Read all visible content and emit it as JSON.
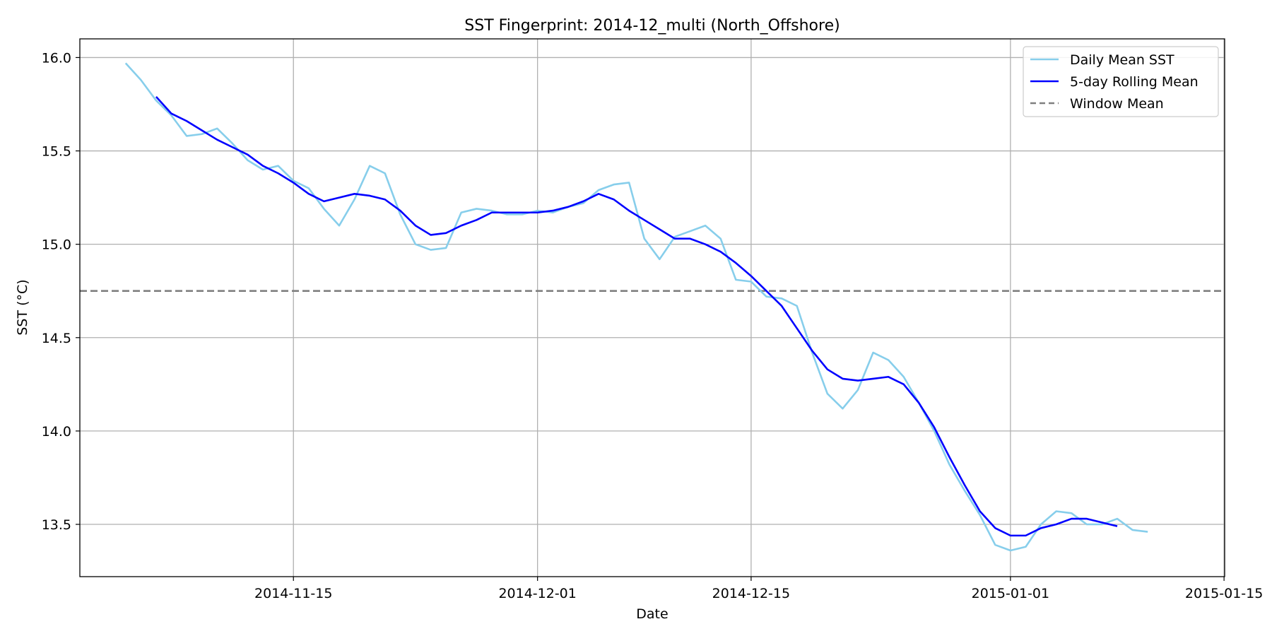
{
  "chart_data": {
    "type": "line",
    "title": "SST Fingerprint: 2014-12_multi (North_Offshore)",
    "xlabel": "Date",
    "ylabel": "SST (°C)",
    "xlim": [
      "2014-11-01",
      "2015-01-15"
    ],
    "ylim": [
      13.22,
      16.1
    ],
    "x_ticks": [
      "2014-11-15",
      "2014-12-01",
      "2014-12-15",
      "2015-01-01",
      "2015-01-15"
    ],
    "y_ticks": [
      13.5,
      14.0,
      14.5,
      15.0,
      15.5,
      16.0
    ],
    "y_tick_labels": [
      "13.5",
      "14.0",
      "14.5",
      "15.0",
      "15.5",
      "16.0"
    ],
    "grid": true,
    "legend_position": "top-right",
    "series": [
      {
        "name": "Daily Mean SST",
        "color": "#87ceeb",
        "start_date": "2014-11-04",
        "values": [
          15.97,
          15.88,
          15.77,
          15.69,
          15.58,
          15.59,
          15.62,
          15.54,
          15.45,
          15.4,
          15.42,
          15.34,
          15.3,
          15.19,
          15.1,
          15.24,
          15.42,
          15.38,
          15.16,
          15.0,
          14.97,
          14.98,
          15.17,
          15.19,
          15.18,
          15.16,
          15.16,
          15.18,
          15.17,
          15.2,
          15.22,
          15.29,
          15.32,
          15.33,
          15.03,
          14.92,
          15.04,
          15.07,
          15.1,
          15.03,
          14.81,
          14.8,
          14.72,
          14.71,
          14.67,
          14.42,
          14.2,
          14.12,
          14.22,
          14.42,
          14.38,
          14.29,
          14.15,
          14.0,
          13.82,
          13.68,
          13.55,
          13.39,
          13.36,
          13.38,
          13.5,
          13.57,
          13.56,
          13.5,
          13.5,
          13.53,
          13.47,
          13.46
        ]
      },
      {
        "name": "5-day Rolling Mean",
        "color": "#0000ff",
        "start_date": "2014-11-06",
        "values": [
          15.79,
          15.7,
          15.66,
          15.61,
          15.56,
          15.52,
          15.48,
          15.42,
          15.38,
          15.33,
          15.27,
          15.23,
          15.25,
          15.27,
          15.26,
          15.24,
          15.18,
          15.1,
          15.05,
          15.06,
          15.1,
          15.13,
          15.17,
          15.17,
          15.17,
          15.17,
          15.18,
          15.2,
          15.23,
          15.27,
          15.24,
          15.18,
          15.13,
          15.08,
          15.03,
          15.03,
          15.0,
          14.96,
          14.9,
          14.83,
          14.75,
          14.67,
          14.55,
          14.43,
          14.33,
          14.28,
          14.27,
          14.28,
          14.29,
          14.25,
          14.15,
          14.02,
          13.86,
          13.71,
          13.57,
          13.48,
          13.44,
          13.44,
          13.48,
          13.5,
          13.53,
          13.53,
          13.51,
          13.49
        ]
      },
      {
        "name": "Window Mean",
        "color": "#808080",
        "style": "dashed",
        "value": 14.75
      }
    ]
  }
}
